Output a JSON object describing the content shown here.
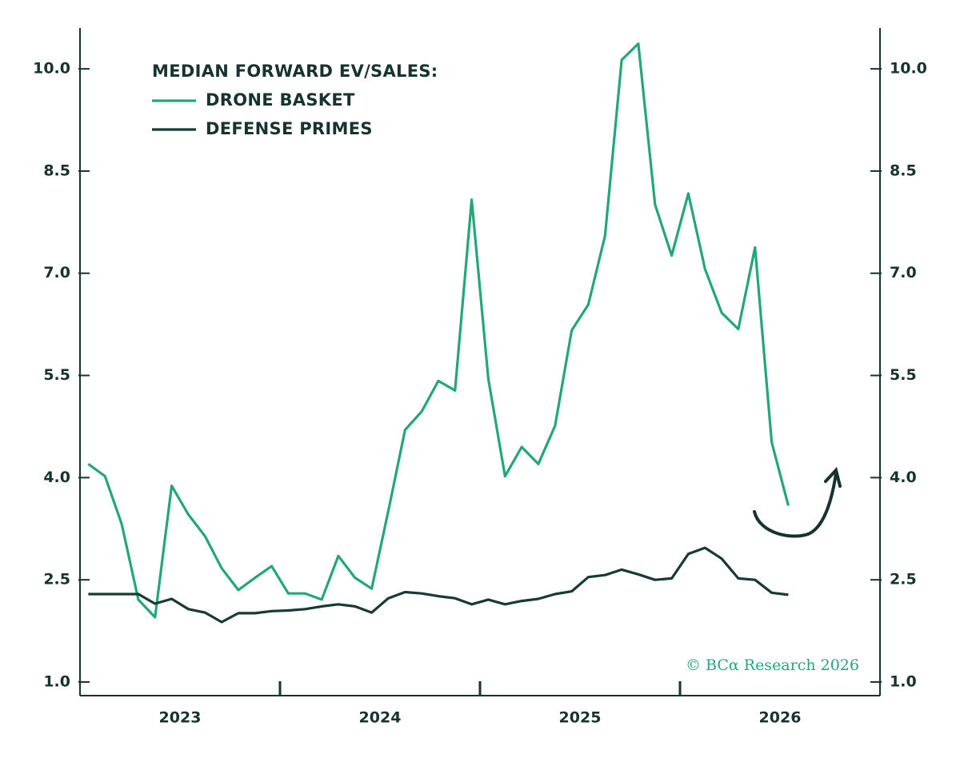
{
  "chart_data": {
    "type": "line",
    "legend_title": "MEDIAN FORWARD EV/SALES:",
    "credit": "© BCα Research 2026",
    "categories": [
      "2023",
      null,
      null,
      null,
      null,
      null,
      null,
      null,
      null,
      null,
      null,
      null,
      "2024",
      null,
      null,
      null,
      null,
      null,
      null,
      null,
      null,
      null,
      null,
      null,
      "2025",
      null,
      null,
      null,
      null,
      null,
      null,
      null,
      null,
      null,
      null,
      null,
      "2026",
      null,
      null,
      null,
      null,
      null,
      null,
      null,
      null,
      null,
      null,
      null
    ],
    "series": [
      {
        "name": "DRONE BASKET",
        "color": "#22a77b",
        "values": [
          4.2,
          4.02,
          3.32,
          2.21,
          1.95,
          3.88,
          3.46,
          3.14,
          2.67,
          2.35,
          2.53,
          2.7,
          2.3,
          2.3,
          2.21,
          2.85,
          2.53,
          2.37,
          3.51,
          4.7,
          4.97,
          5.42,
          5.28,
          8.08,
          5.45,
          4.02,
          4.45,
          4.2,
          4.76,
          6.16,
          6.54,
          7.55,
          10.13,
          10.37,
          8.01,
          7.26,
          8.17,
          7.06,
          6.42,
          6.18,
          7.38,
          4.52,
          3.59,
          null,
          null,
          null,
          null,
          null
        ]
      },
      {
        "name": "DEFENSE PRIMES",
        "color": "#173a34",
        "values": [
          2.29,
          2.29,
          2.29,
          2.29,
          2.15,
          2.22,
          2.07,
          2.02,
          1.88,
          2.01,
          2.01,
          2.04,
          2.05,
          2.07,
          2.11,
          2.14,
          2.11,
          2.02,
          2.23,
          2.32,
          2.3,
          2.26,
          2.23,
          2.14,
          2.21,
          2.14,
          2.19,
          2.22,
          2.29,
          2.33,
          2.54,
          2.57,
          2.65,
          2.58,
          2.5,
          2.52,
          2.88,
          2.97,
          2.81,
          2.52,
          2.5,
          2.31,
          2.28,
          null,
          null,
          null,
          null,
          null
        ]
      }
    ],
    "ylim": [
      0.8,
      10.6
    ],
    "yticks": [
      {
        "value": 1,
        "label": "1.0"
      },
      2.5,
      {
        "value": 4,
        "label": "4.0"
      },
      5.5,
      {
        "value": 7,
        "label": "7.0"
      },
      8.5,
      {
        "value": 10,
        "label": "10.0"
      }
    ],
    "grid": false
  }
}
